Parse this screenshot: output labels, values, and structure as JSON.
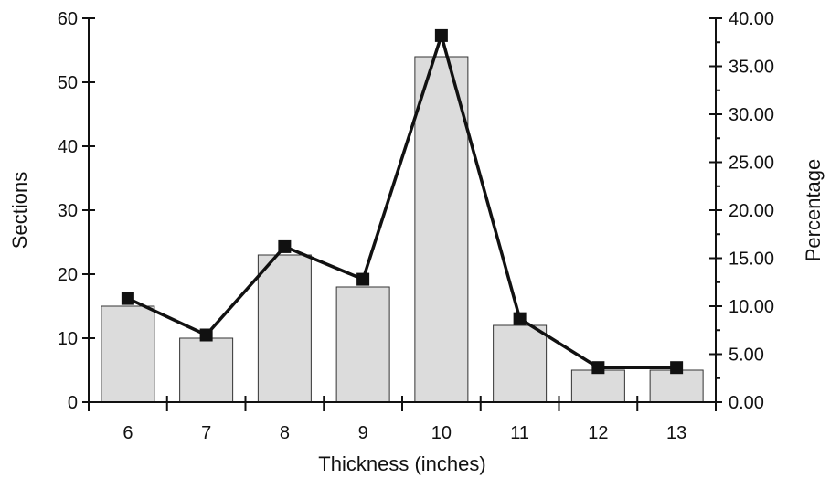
{
  "chart_data": {
    "type": "bar",
    "title": "",
    "xlabel": "Thickness (inches)",
    "ylabel": "Sections",
    "y2label": "Percentage",
    "categories": [
      "6",
      "7",
      "8",
      "9",
      "10",
      "11",
      "12",
      "13"
    ],
    "ylim": [
      0,
      60
    ],
    "y2lim": [
      0,
      40
    ],
    "yticks": [
      "0",
      "10",
      "20",
      "30",
      "40",
      "50",
      "60"
    ],
    "y2ticks": [
      "0.00",
      "5.00",
      "10.00",
      "15.00",
      "20.00",
      "25.00",
      "30.00",
      "35.00",
      "40.00"
    ],
    "grid": false,
    "series": [
      {
        "type": "bar",
        "axis": "left",
        "values": [
          15,
          10,
          23,
          18,
          54,
          12,
          5,
          5
        ]
      },
      {
        "type": "line",
        "axis": "right",
        "values": [
          10.8,
          7.0,
          16.2,
          12.8,
          38.2,
          8.7,
          3.6,
          3.6
        ]
      }
    ],
    "colors": {
      "bar_fill": "#dcdcdc",
      "bar_stroke": "#333333",
      "line": "#111111",
      "marker": "#111111"
    }
  }
}
